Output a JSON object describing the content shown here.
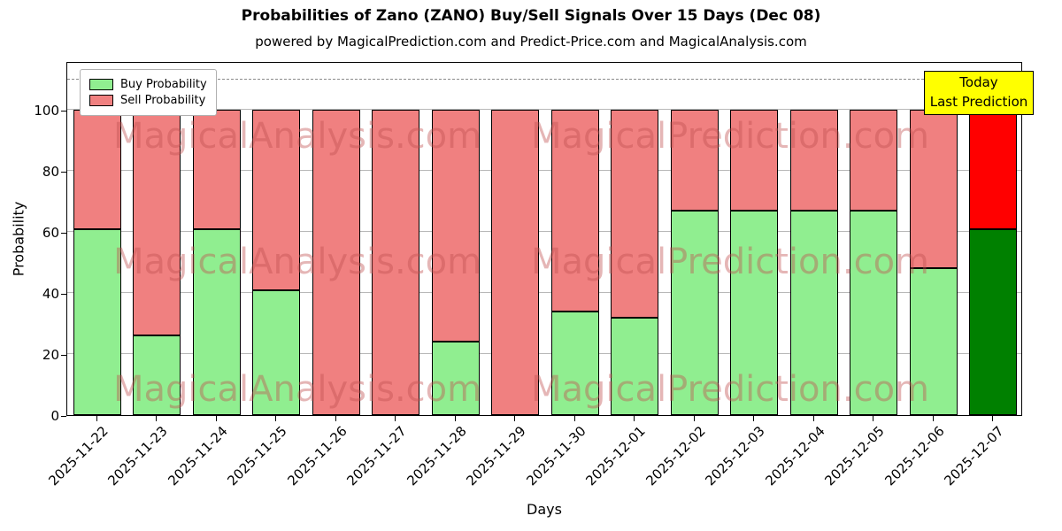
{
  "title": "Probabilities of Zano (ZANO) Buy/Sell Signals Over 15 Days (Dec 08)",
  "subtitle": "powered by MagicalPrediction.com and Predict-Price.com and MagicalAnalysis.com",
  "xlabel": "Days",
  "ylabel": "Probability",
  "legend": {
    "buy_label": "Buy Probability",
    "sell_label": "Sell Probability"
  },
  "annotation": {
    "line1": "Today",
    "line2": "Last Prediction",
    "bg_color": "#ffff00"
  },
  "colors": {
    "buy": "#90EE90",
    "sell": "#F08080",
    "today_buy": "#008000",
    "today_sell": "#FF0000",
    "grid": "#b8b8b8"
  },
  "watermarks": {
    "left_text": "MagicalAnalysis.com",
    "right_text": "MagicalPrediction.com"
  },
  "chart_data": {
    "type": "bar",
    "stacked": true,
    "categories": [
      "2025-11-22",
      "2025-11-23",
      "2025-11-24",
      "2025-11-25",
      "2025-11-26",
      "2025-11-27",
      "2025-11-28",
      "2025-11-29",
      "2025-11-30",
      "2025-12-01",
      "2025-12-02",
      "2025-12-03",
      "2025-12-04",
      "2025-12-05",
      "2025-12-06",
      "2025-12-07"
    ],
    "series": [
      {
        "name": "Buy Probability",
        "values": [
          61,
          26,
          61,
          41,
          0,
          0,
          24,
          0,
          34,
          32,
          67,
          67,
          67,
          67,
          48,
          61
        ]
      },
      {
        "name": "Sell Probability",
        "values": [
          39,
          74,
          39,
          59,
          100,
          100,
          76,
          100,
          66,
          68,
          33,
          33,
          33,
          33,
          52,
          39
        ]
      }
    ],
    "today_index": 15,
    "yticks": [
      0,
      20,
      40,
      60,
      80,
      100
    ],
    "ylim": [
      0,
      116
    ],
    "dashed_line_y": 110,
    "grid": true,
    "legend_position": "upper left"
  }
}
